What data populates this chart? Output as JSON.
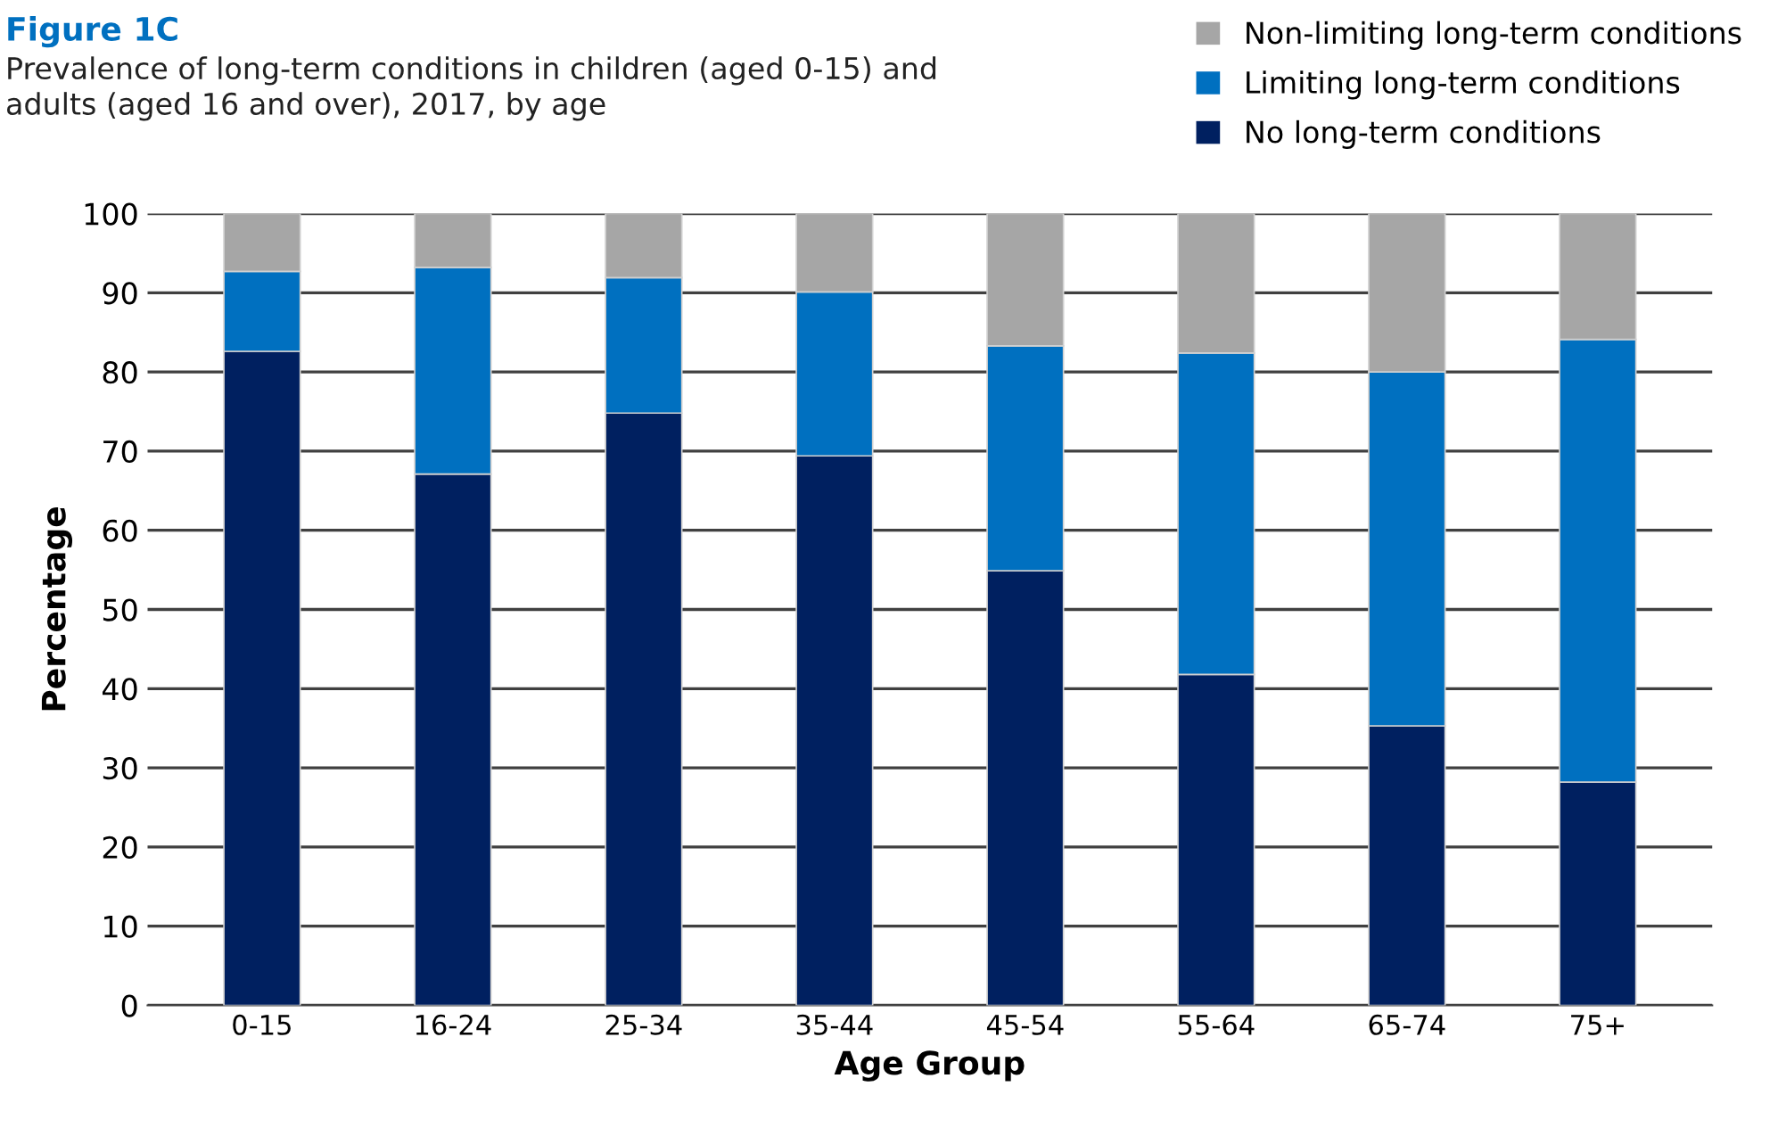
{
  "chart_data": {
    "type": "bar",
    "stacked": true,
    "title": "Figure 1C",
    "subtitle": "Prevalence of long-term conditions in children (aged 0-15) and\nadults (aged 16 and over), 2017, by age",
    "xlabel": "Age Group",
    "ylabel": "Percentage",
    "categories": [
      "0-15",
      "16-24",
      "25-34",
      "35-44",
      "45-54",
      "55-64",
      "65-74",
      "75+"
    ],
    "series": [
      {
        "name": "No long-term conditions",
        "color": "#002060",
        "values": [
          82.6,
          67.1,
          74.8,
          69.4,
          54.9,
          41.8,
          35.3,
          28.2
        ]
      },
      {
        "name": "Limiting long-term conditions",
        "color": "#0070c0",
        "values": [
          10.1,
          26.1,
          17.1,
          20.7,
          28.4,
          40.6,
          44.7,
          55.9
        ]
      },
      {
        "name": "Non-limiting long-term conditions",
        "color": "#a6a6a6",
        "values": [
          7.3,
          6.8,
          8.1,
          9.9,
          16.7,
          17.6,
          20.0,
          15.9
        ]
      }
    ],
    "ylim": [
      0,
      100
    ],
    "yticks": [
      0,
      10,
      20,
      30,
      40,
      50,
      60,
      70,
      80,
      90,
      100
    ],
    "grid": "y",
    "legend": "top right"
  }
}
